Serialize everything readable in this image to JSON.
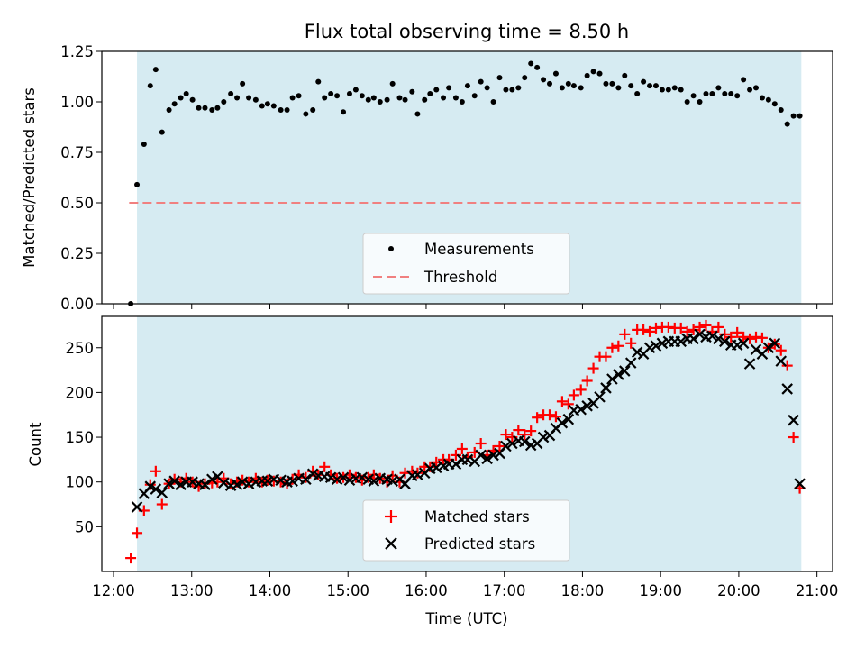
{
  "chart_data": [
    {
      "type": "scatter",
      "title": "Flux total observing time = 8.50 h",
      "ylabel": "Matched/Predicted stars",
      "ylim": [
        0,
        1.25
      ],
      "yticks": [
        0,
        0.25,
        0.5,
        0.75,
        1.0,
        1.25
      ],
      "ytick_labels": [
        "0.00",
        "0.25",
        "0.50",
        "0.75",
        "1.00",
        "1.25"
      ],
      "xlim": [
        11.85,
        21.2
      ],
      "shaded_span": [
        12.3,
        20.8
      ],
      "threshold": {
        "value": 0.5,
        "x_range": [
          12.2,
          20.8
        ]
      },
      "legend": {
        "position": "lower-center",
        "entries": [
          {
            "label": "Measurements",
            "marker": "dot",
            "color": "#000000"
          },
          {
            "label": "Threshold",
            "marker": "dash",
            "color": "#f08080"
          }
        ]
      },
      "series": [
        {
          "name": "Measurements",
          "x": [
            12.22,
            12.3,
            12.39,
            12.47,
            12.54,
            12.62,
            12.71,
            12.78,
            12.86,
            12.93,
            13.01,
            13.09,
            13.17,
            13.26,
            13.33,
            13.41,
            13.5,
            13.58,
            13.65,
            13.73,
            13.82,
            13.9,
            13.97,
            14.05,
            14.14,
            14.22,
            14.29,
            14.37,
            14.46,
            14.55,
            14.62,
            14.7,
            14.78,
            14.86,
            14.94,
            15.02,
            15.1,
            15.18,
            15.26,
            15.33,
            15.41,
            15.5,
            15.57,
            15.66,
            15.73,
            15.82,
            15.89,
            15.98,
            16.05,
            16.13,
            16.22,
            16.29,
            16.38,
            16.46,
            16.53,
            16.62,
            16.7,
            16.78,
            16.86,
            16.94,
            17.02,
            17.1,
            17.18,
            17.26,
            17.34,
            17.42,
            17.5,
            17.58,
            17.66,
            17.74,
            17.82,
            17.89,
            17.98,
            18.06,
            18.14,
            18.22,
            18.3,
            18.38,
            18.46,
            18.54,
            18.62,
            18.7,
            18.78,
            18.86,
            18.94,
            19.02,
            19.1,
            19.18,
            19.26,
            19.34,
            19.42,
            19.5,
            19.58,
            19.66,
            19.74,
            19.82,
            19.9,
            19.98,
            20.06,
            20.14,
            20.22,
            20.3,
            20.38,
            20.46,
            20.54,
            20.62,
            20.7,
            20.78
          ],
          "y": [
            0.0,
            0.59,
            0.79,
            1.08,
            1.16,
            0.85,
            0.96,
            0.99,
            1.02,
            1.04,
            1.01,
            0.97,
            0.97,
            0.96,
            0.97,
            1.0,
            1.04,
            1.02,
            1.09,
            1.02,
            1.01,
            0.98,
            0.99,
            0.98,
            0.96,
            0.96,
            1.02,
            1.03,
            0.94,
            0.96,
            1.1,
            1.02,
            1.04,
            1.03,
            0.95,
            1.04,
            1.06,
            1.03,
            1.01,
            1.02,
            1.0,
            1.01,
            1.09,
            1.02,
            1.01,
            1.05,
            0.94,
            1.01,
            1.04,
            1.06,
            1.02,
            1.07,
            1.02,
            1.0,
            1.08,
            1.03,
            1.1,
            1.07,
            1.0,
            1.12,
            1.06,
            1.06,
            1.07,
            1.12,
            1.19,
            1.17,
            1.11,
            1.09,
            1.14,
            1.07,
            1.09,
            1.08,
            1.07,
            1.13,
            1.15,
            1.14,
            1.09,
            1.09,
            1.07,
            1.13,
            1.08,
            1.04,
            1.1,
            1.08,
            1.08,
            1.06,
            1.06,
            1.07,
            1.06,
            1.0,
            1.03,
            1.0,
            1.04,
            1.04,
            1.07,
            1.04,
            1.04,
            1.03,
            1.11,
            1.06,
            1.07,
            1.02,
            1.01,
            0.99,
            0.96,
            0.89,
            0.93,
            0.93
          ]
        }
      ]
    },
    {
      "type": "scatter",
      "xlabel": "Time (UTC)",
      "ylabel": "Count",
      "ylim": [
        0,
        285
      ],
      "yticks": [
        50,
        100,
        150,
        200,
        250
      ],
      "ytick_labels": [
        "50",
        "100",
        "150",
        "200",
        "250"
      ],
      "xlim": [
        11.85,
        21.2
      ],
      "xticks": [
        12,
        13,
        14,
        15,
        16,
        17,
        18,
        19,
        20,
        21
      ],
      "xtick_labels": [
        "12:00",
        "13:00",
        "14:00",
        "15:00",
        "16:00",
        "17:00",
        "18:00",
        "19:00",
        "20:00",
        "21:00"
      ],
      "shaded_span": [
        12.3,
        20.8
      ],
      "legend": {
        "position": "lower-center",
        "entries": [
          {
            "label": "Matched stars",
            "marker": "plus",
            "color": "#ff0000"
          },
          {
            "label": "Predicted stars",
            "marker": "x",
            "color": "#000000"
          }
        ]
      },
      "series": [
        {
          "name": "Matched stars",
          "x": [
            12.22,
            12.3,
            12.39,
            12.47,
            12.54,
            12.62,
            12.71,
            12.78,
            12.86,
            12.93,
            13.01,
            13.09,
            13.17,
            13.26,
            13.33,
            13.41,
            13.5,
            13.58,
            13.65,
            13.73,
            13.82,
            13.9,
            13.97,
            14.05,
            14.14,
            14.22,
            14.29,
            14.37,
            14.46,
            14.55,
            14.62,
            14.7,
            14.78,
            14.86,
            14.94,
            15.02,
            15.1,
            15.18,
            15.26,
            15.33,
            15.41,
            15.5,
            15.57,
            15.66,
            15.73,
            15.82,
            15.89,
            15.98,
            16.05,
            16.13,
            16.22,
            16.29,
            16.38,
            16.46,
            16.53,
            16.62,
            16.7,
            16.78,
            16.86,
            16.94,
            17.02,
            17.1,
            17.18,
            17.26,
            17.34,
            17.42,
            17.5,
            17.58,
            17.66,
            17.74,
            17.82,
            17.89,
            17.98,
            18.06,
            18.14,
            18.22,
            18.3,
            18.38,
            18.46,
            18.54,
            18.62,
            18.7,
            18.78,
            18.86,
            18.94,
            19.02,
            19.1,
            19.18,
            19.26,
            19.34,
            19.42,
            19.5,
            19.58,
            19.66,
            19.74,
            19.82,
            19.9,
            19.98,
            20.06,
            20.14,
            20.22,
            20.3,
            20.38,
            20.46,
            20.54,
            20.62,
            20.7,
            20.78
          ],
          "y": [
            15,
            43,
            68,
            97,
            112,
            75,
            98,
            103,
            100,
            104,
            100,
            95,
            98,
            99,
            100,
            104,
            98,
            100,
            102,
            100,
            104,
            100,
            102,
            101,
            100,
            98,
            103,
            108,
            105,
            112,
            108,
            117,
            108,
            104,
            105,
            108,
            105,
            102,
            105,
            108,
            104,
            100,
            107,
            100,
            110,
            112,
            110,
            117,
            117,
            122,
            125,
            125,
            130,
            137,
            128,
            133,
            143,
            130,
            135,
            140,
            153,
            150,
            158,
            153,
            157,
            172,
            175,
            175,
            173,
            190,
            187,
            197,
            203,
            213,
            227,
            240,
            240,
            250,
            252,
            265,
            255,
            270,
            270,
            268,
            272,
            273,
            273,
            272,
            272,
            268,
            270,
            273,
            275,
            268,
            273,
            265,
            262,
            267,
            262,
            260,
            262,
            261,
            250,
            254,
            247,
            230,
            150,
            93
          ]
        },
        {
          "name": "Predicted stars",
          "x": [
            12.3,
            12.39,
            12.47,
            12.54,
            12.62,
            12.71,
            12.78,
            12.86,
            12.93,
            13.01,
            13.09,
            13.17,
            13.26,
            13.33,
            13.41,
            13.5,
            13.58,
            13.65,
            13.73,
            13.82,
            13.9,
            13.97,
            14.05,
            14.14,
            14.22,
            14.29,
            14.37,
            14.46,
            14.55,
            14.62,
            14.7,
            14.78,
            14.86,
            14.94,
            15.02,
            15.1,
            15.18,
            15.26,
            15.33,
            15.41,
            15.5,
            15.57,
            15.66,
            15.73,
            15.82,
            15.89,
            15.98,
            16.05,
            16.13,
            16.22,
            16.29,
            16.38,
            16.46,
            16.53,
            16.62,
            16.7,
            16.78,
            16.86,
            16.94,
            17.02,
            17.1,
            17.18,
            17.26,
            17.34,
            17.42,
            17.5,
            17.58,
            17.66,
            17.74,
            17.82,
            17.89,
            17.98,
            18.06,
            18.14,
            18.22,
            18.3,
            18.38,
            18.46,
            18.54,
            18.62,
            18.7,
            18.78,
            18.86,
            18.94,
            19.02,
            19.1,
            19.18,
            19.26,
            19.34,
            19.42,
            19.5,
            19.58,
            19.66,
            19.74,
            19.82,
            19.9,
            19.98,
            20.06,
            20.14,
            20.22,
            20.3,
            20.38,
            20.46,
            20.54,
            20.62,
            20.7,
            20.78
          ],
          "y": [
            72,
            87,
            95,
            92,
            88,
            98,
            101,
            97,
            100,
            100,
            98,
            97,
            103,
            106,
            99,
            96,
            97,
            100,
            98,
            100,
            101,
            101,
            103,
            102,
            100,
            101,
            104,
            103,
            109,
            107,
            106,
            105,
            103,
            105,
            102,
            104,
            105,
            103,
            101,
            104,
            103,
            101,
            103,
            98,
            107,
            108,
            110,
            115,
            116,
            118,
            120,
            120,
            125,
            125,
            123,
            130,
            126,
            130,
            132,
            140,
            143,
            146,
            145,
            141,
            143,
            150,
            152,
            160,
            166,
            170,
            180,
            181,
            185,
            188,
            195,
            205,
            215,
            220,
            224,
            233,
            245,
            243,
            250,
            252,
            255,
            257,
            257,
            257,
            260,
            260,
            265,
            262,
            263,
            260,
            257,
            253,
            253,
            255,
            232,
            248,
            243,
            250,
            255,
            235,
            204,
            169,
            98
          ]
        }
      ]
    }
  ]
}
